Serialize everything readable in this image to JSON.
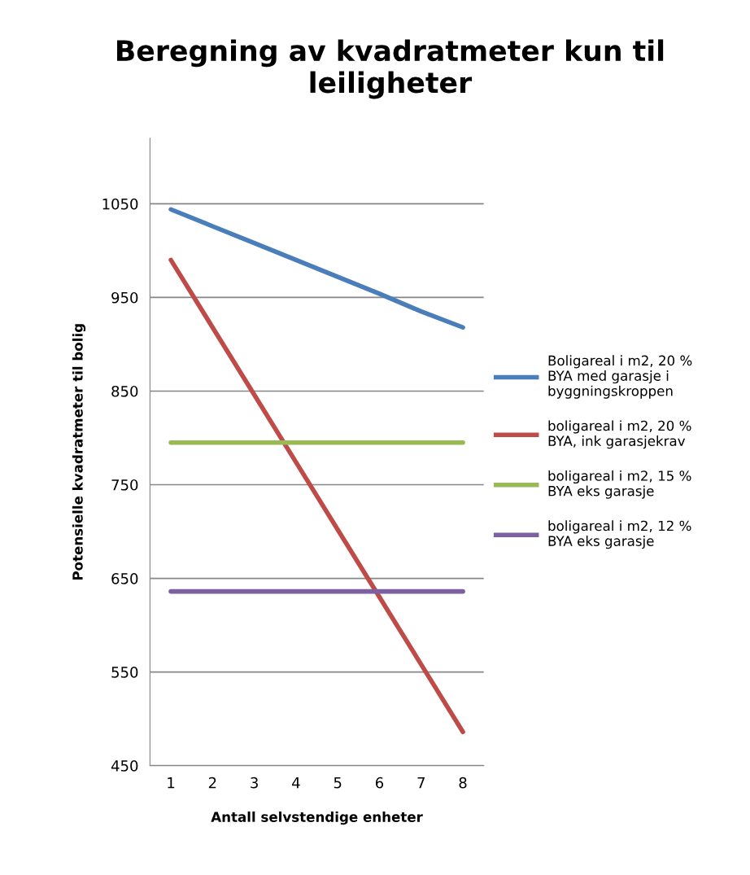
{
  "chart_data": {
    "type": "line",
    "title": "Beregning av kvadratmeter kun til leiligheter",
    "xlabel": "Antall selvstendige enheter",
    "ylabel": "Potensielle kvadratmeter til bolig",
    "categories": [
      "1",
      "2",
      "3",
      "4",
      "5",
      "6",
      "7",
      "8"
    ],
    "series": [
      {
        "name": "Boligareal i m2, 20 % BYA med garasje i byggningskroppen",
        "color": "#4a7ebb",
        "values": [
          1044,
          1026,
          1008,
          990,
          972,
          954,
          935,
          918
        ]
      },
      {
        "name": "boligareal i m2, 20 % BYA, ink garasjekrav",
        "color": "#be4b48",
        "values": [
          990,
          918,
          846,
          774,
          702,
          630,
          558,
          486
        ]
      },
      {
        "name": "boligareal i m2, 15 % BYA eks garasje",
        "color": "#98b954",
        "values": [
          795,
          795,
          795,
          795,
          795,
          795,
          795,
          795
        ]
      },
      {
        "name": "boligareal i m2, 12 % BYA eks garasje",
        "color": "#7d60a0",
        "values": [
          636,
          636,
          636,
          636,
          636,
          636,
          636,
          636
        ]
      }
    ],
    "ylim": [
      450,
      1120
    ],
    "yticks": [
      450,
      550,
      650,
      750,
      850,
      950,
      1050
    ],
    "grid": "y",
    "legend": "right",
    "marker": "none",
    "line_style": "solid"
  }
}
